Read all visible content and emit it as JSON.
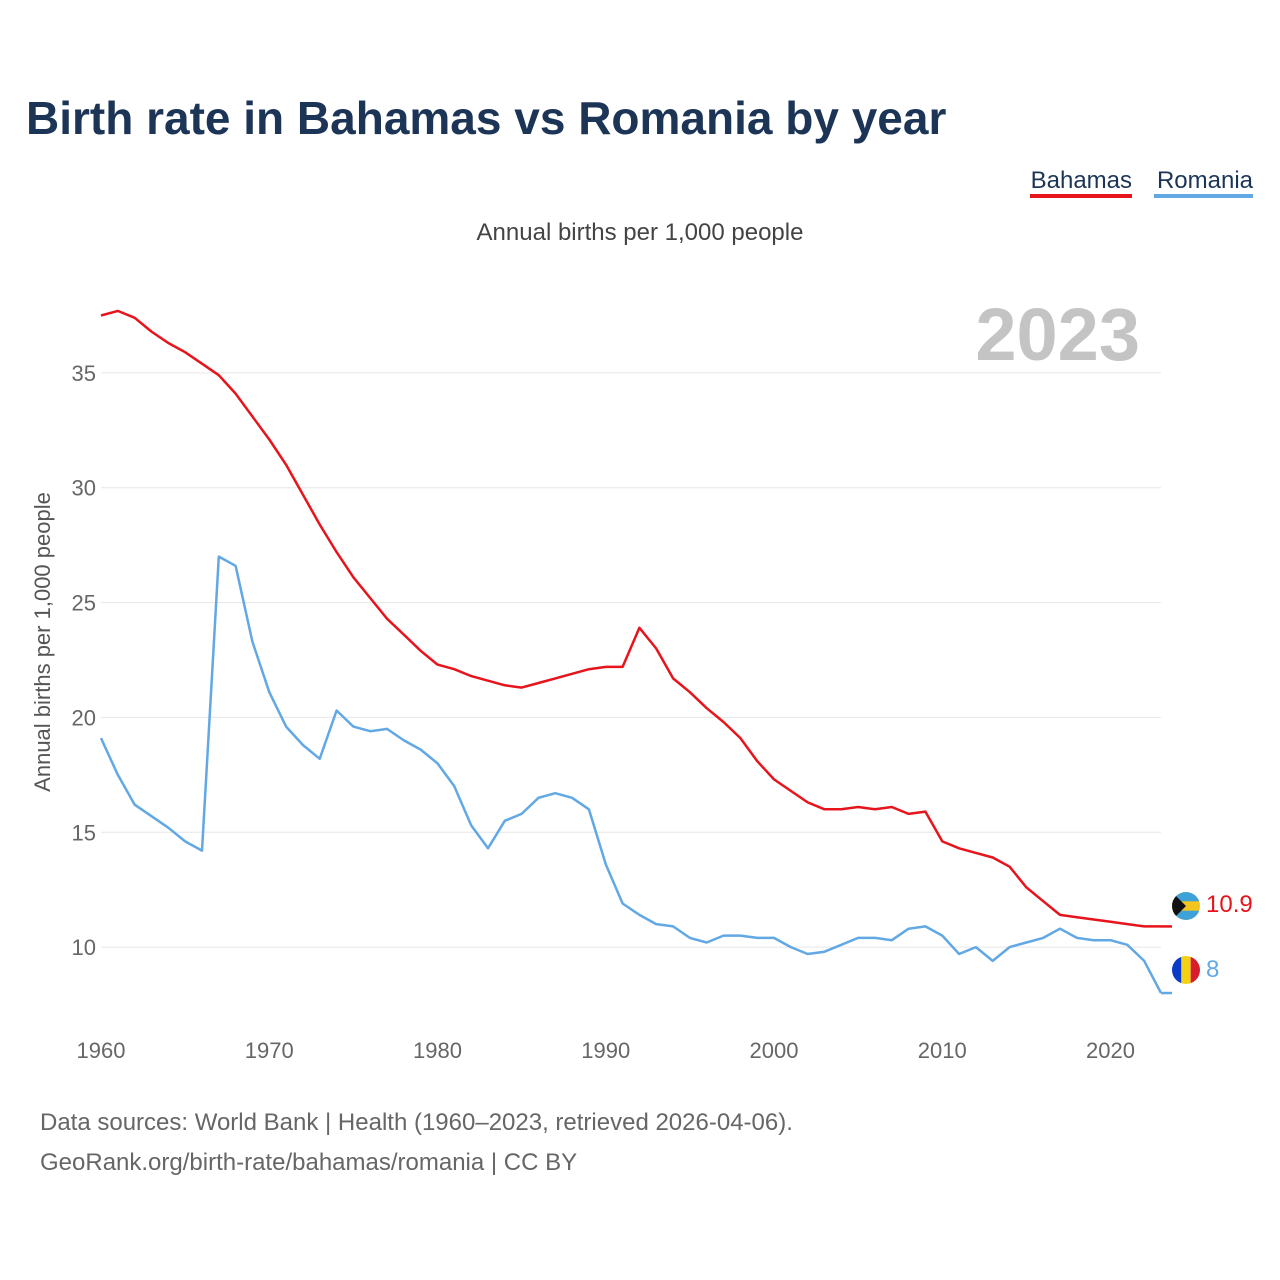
{
  "source_line1": "Data sources: World Bank | Health (1960–2023, retrieved 2026-04-06).",
  "source_line2": "GeoRank.org/birth-rate/bahamas/romania | CC BY",
  "year_badge": "2023",
  "colors": {
    "bahamas": "#e8141c",
    "romania": "#62a8e5",
    "title": "#1c3557"
  },
  "chart_data": {
    "type": "line",
    "title": "Birth rate in Bahamas vs Romania by year",
    "subtitle": "Annual births per 1,000 people",
    "ylabel": "Annual births per 1,000 people",
    "xlabel": "",
    "xlim": [
      1960,
      2023
    ],
    "ylim": [
      7,
      38
    ],
    "xticks": [
      1960,
      1970,
      1980,
      1990,
      2000,
      2010,
      2020
    ],
    "yticks": [
      10,
      15,
      20,
      25,
      30,
      35
    ],
    "legend": "top-right",
    "x": [
      1960,
      1961,
      1962,
      1963,
      1964,
      1965,
      1966,
      1967,
      1968,
      1969,
      1970,
      1971,
      1972,
      1973,
      1974,
      1975,
      1976,
      1977,
      1978,
      1979,
      1980,
      1981,
      1982,
      1983,
      1984,
      1985,
      1986,
      1987,
      1988,
      1989,
      1990,
      1991,
      1992,
      1993,
      1994,
      1995,
      1996,
      1997,
      1998,
      1999,
      2000,
      2001,
      2002,
      2003,
      2004,
      2005,
      2006,
      2007,
      2008,
      2009,
      2010,
      2011,
      2012,
      2013,
      2014,
      2015,
      2016,
      2017,
      2018,
      2019,
      2020,
      2021,
      2022,
      2023
    ],
    "series": [
      {
        "name": "Bahamas",
        "color": "#e8141c",
        "end_label": "10.9",
        "values": [
          37.5,
          37.7,
          37.4,
          36.8,
          36.3,
          35.9,
          35.4,
          34.9,
          34.1,
          33.1,
          32.1,
          31.0,
          29.7,
          28.4,
          27.2,
          26.1,
          25.2,
          24.3,
          23.6,
          22.9,
          22.3,
          22.1,
          21.8,
          21.6,
          21.4,
          21.3,
          21.5,
          21.7,
          21.9,
          22.1,
          22.2,
          22.2,
          23.9,
          23.0,
          21.7,
          21.1,
          20.4,
          19.8,
          19.1,
          18.1,
          17.3,
          16.8,
          16.3,
          16.0,
          16.0,
          16.1,
          16.0,
          16.1,
          15.8,
          15.9,
          14.6,
          14.3,
          14.1,
          13.9,
          13.5,
          12.6,
          12.0,
          11.4,
          11.3,
          11.2,
          11.1,
          11.0,
          10.9,
          10.9
        ]
      },
      {
        "name": "Romania",
        "color": "#62a8e5",
        "end_label": "8",
        "values": [
          19.1,
          17.5,
          16.2,
          15.7,
          15.2,
          14.6,
          14.2,
          27.0,
          26.6,
          23.3,
          21.1,
          19.6,
          18.8,
          18.2,
          20.3,
          19.6,
          19.4,
          19.5,
          19.0,
          18.6,
          18.0,
          17.0,
          15.3,
          14.3,
          15.5,
          15.8,
          16.5,
          16.7,
          16.5,
          16.0,
          13.6,
          11.9,
          11.4,
          11.0,
          10.9,
          10.4,
          10.2,
          10.5,
          10.5,
          10.4,
          10.4,
          10.0,
          9.7,
          9.8,
          10.1,
          10.4,
          10.4,
          10.3,
          10.8,
          10.9,
          10.5,
          9.7,
          10.0,
          9.4,
          10.0,
          10.2,
          10.4,
          10.8,
          10.4,
          10.3,
          10.3,
          10.1,
          9.4,
          8.0
        ]
      }
    ]
  }
}
